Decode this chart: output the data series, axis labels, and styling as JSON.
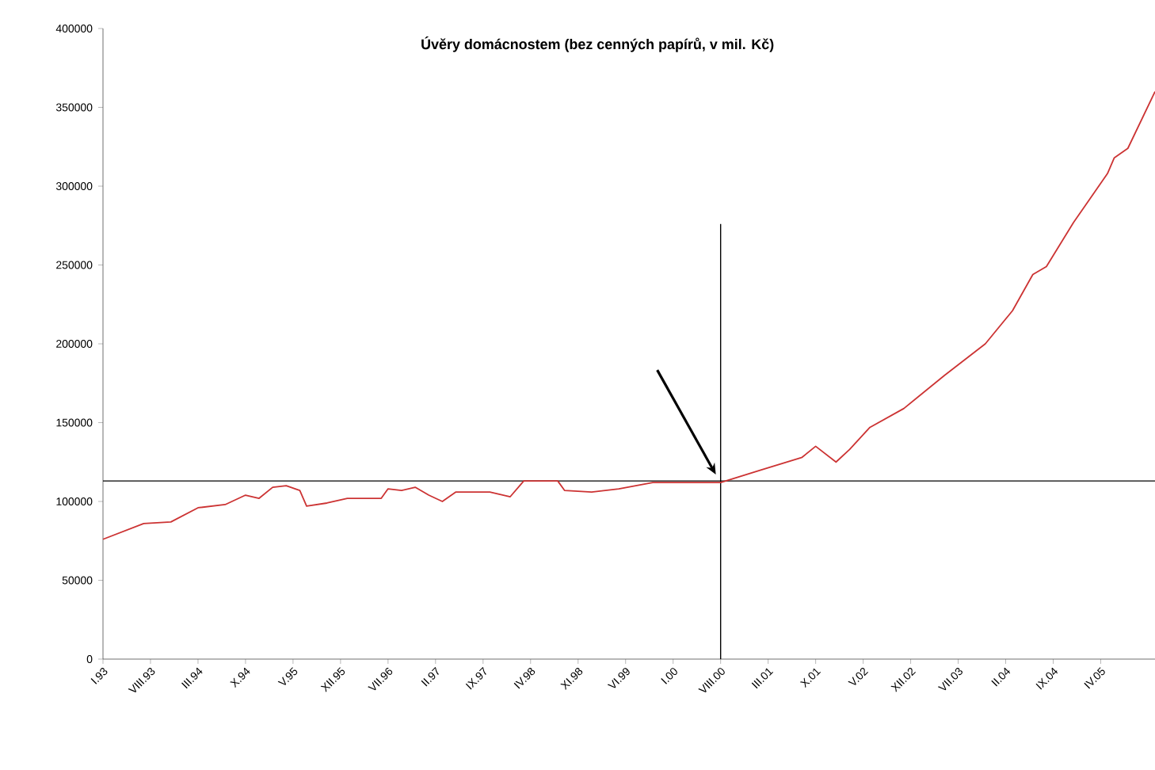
{
  "chart_data": {
    "type": "line",
    "title": "Úvěry domácnostem (bez cenných papírů, v mil. Kč)",
    "series": [
      {
        "color": "#cc3333",
        "x": [
          "1993-01",
          "1993-07",
          "1993-11",
          "1994-03",
          "1994-07",
          "1994-10",
          "1994-12",
          "1995-02",
          "1995-04",
          "1995-06",
          "1995-07",
          "1995-10",
          "1996-01",
          "1996-06",
          "1996-07",
          "1996-09",
          "1996-11",
          "1997-01",
          "1997-03",
          "1997-05",
          "1997-10",
          "1998-01",
          "1998-03",
          "1998-08",
          "1998-09",
          "1999-01",
          "1999-05",
          "1999-10",
          "2000-05",
          "2000-08",
          "2001-02",
          "2001-08",
          "2001-10",
          "2002-01",
          "2002-03",
          "2002-06",
          "2002-11",
          "2003-05",
          "2003-11",
          "2004-03",
          "2004-06",
          "2004-08",
          "2004-12",
          "2005-05",
          "2005-06",
          "2005-08",
          "2005-12"
        ],
        "values": [
          76000,
          86000,
          87000,
          96000,
          98000,
          104000,
          102000,
          109000,
          110000,
          107000,
          97000,
          99000,
          102000,
          102000,
          108000,
          107000,
          109000,
          104000,
          100000,
          106000,
          106000,
          103000,
          113000,
          113000,
          107000,
          106000,
          108000,
          112000,
          112000,
          112000,
          120000,
          128000,
          135000,
          125000,
          133000,
          147000,
          159000,
          180000,
          200000,
          221000,
          244000,
          249000,
          277000,
          308000,
          318000,
          324000,
          360000
        ]
      }
    ],
    "xlim": [
      "1993-01",
      "2005-12"
    ],
    "xticks": [
      {
        "value": "1993-01",
        "label": "I.93"
      },
      {
        "value": "1993-08",
        "label": "VIII.93"
      },
      {
        "value": "1994-03",
        "label": "III.94"
      },
      {
        "value": "1994-10",
        "label": "X.94"
      },
      {
        "value": "1995-05",
        "label": "V.95"
      },
      {
        "value": "1995-12",
        "label": "XII.95"
      },
      {
        "value": "1996-07",
        "label": "VII.96"
      },
      {
        "value": "1997-02",
        "label": "II.97"
      },
      {
        "value": "1997-09",
        "label": "IX.97"
      },
      {
        "value": "1998-04",
        "label": "IV.98"
      },
      {
        "value": "1998-11",
        "label": "XI.98"
      },
      {
        "value": "1999-06",
        "label": "VI.99"
      },
      {
        "value": "2000-01",
        "label": "I.00"
      },
      {
        "value": "2000-08",
        "label": "VIII.00"
      },
      {
        "value": "2001-03",
        "label": "III.01"
      },
      {
        "value": "2001-10",
        "label": "X.01"
      },
      {
        "value": "2002-05",
        "label": "V.02"
      },
      {
        "value": "2002-12",
        "label": "XII.02"
      },
      {
        "value": "2003-07",
        "label": "VII.03"
      },
      {
        "value": "2004-02",
        "label": "II.04"
      },
      {
        "value": "2004-09",
        "label": "IX.04"
      },
      {
        "value": "2005-04",
        "label": "IV.05"
      }
    ],
    "ylim": [
      0,
      400000
    ],
    "yticks": [
      0,
      50000,
      100000,
      150000,
      200000,
      250000,
      300000,
      350000,
      400000
    ],
    "ref_lines": [
      {
        "axis": "y",
        "value": 113000,
        "color": "#000000"
      },
      {
        "axis": "x",
        "value": "2000-08",
        "color": "#000000"
      }
    ],
    "grid": false,
    "marker": "none",
    "line_style": "solid"
  }
}
